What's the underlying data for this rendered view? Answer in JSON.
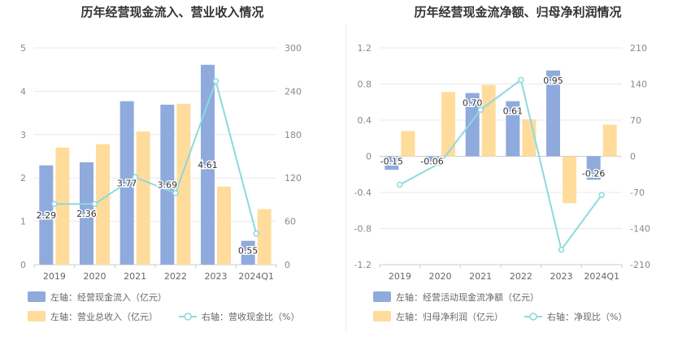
{
  "chart_data": [
    {
      "type": "bar",
      "title": "历年经营现金流入、营业收入情况",
      "categories": [
        "2019",
        "2020",
        "2021",
        "2022",
        "2023",
        "2024Q1"
      ],
      "y_left": {
        "range": [
          0,
          5
        ],
        "ticks": [
          "0",
          "1",
          "2",
          "3",
          "4",
          "5"
        ]
      },
      "y_right": {
        "range": [
          0,
          300
        ],
        "ticks": [
          "0",
          "60",
          "120",
          "180",
          "240",
          "300"
        ]
      },
      "series": [
        {
          "name": "左轴：经营现金流入（亿元）",
          "kind": "bar",
          "axis": "left",
          "color": "#8faadc",
          "values": [
            2.29,
            2.36,
            3.77,
            3.69,
            4.61,
            0.55
          ],
          "labels": [
            "2.29",
            "2.36",
            "3.77",
            "3.69",
            "4.61",
            "0.55"
          ]
        },
        {
          "name": "左轴：营业总收入（亿元）",
          "kind": "bar",
          "axis": "left",
          "color": "#ffdc9c",
          "values": [
            2.7,
            2.78,
            3.07,
            3.71,
            1.8,
            1.28
          ]
        },
        {
          "name": "右轴：营收现金比（%）",
          "kind": "line",
          "axis": "right",
          "color": "#8dd9dc",
          "values": [
            84,
            84,
            121,
            99,
            254,
            43
          ]
        }
      ],
      "legend": [
        {
          "label": "左轴：经营现金流入（亿元）",
          "kind": "bar",
          "color": "#8faadc"
        },
        {
          "label": "左轴：营业总收入（亿元）",
          "kind": "bar",
          "color": "#ffdc9c"
        },
        {
          "label": "右轴：营收现金比（%）",
          "kind": "line",
          "color": "#8dd9dc"
        }
      ]
    },
    {
      "type": "bar",
      "title": "历年经营现金流净额、归母净利润情况",
      "categories": [
        "2019",
        "2020",
        "2021",
        "2022",
        "2023",
        "2024Q1"
      ],
      "y_left": {
        "range": [
          -1.2,
          1.2
        ],
        "ticks": [
          "-1.2",
          "-0.8",
          "-0.4",
          "0",
          "0.4",
          "0.8",
          "1.2"
        ]
      },
      "y_right": {
        "range": [
          -210,
          210
        ],
        "ticks": [
          "-210",
          "-140",
          "-70",
          "0",
          "70",
          "140",
          "210"
        ]
      },
      "series": [
        {
          "name": "左轴：经营活动现金流净额（亿元）",
          "kind": "bar",
          "axis": "left",
          "color": "#8faadc",
          "values": [
            -0.15,
            -0.06,
            0.7,
            0.61,
            0.95,
            -0.26
          ],
          "labels": [
            "-0.15",
            "-0.06",
            "0.70",
            "0.61",
            "0.95",
            "-0.26"
          ]
        },
        {
          "name": "左轴：归母净利润（亿元）",
          "kind": "bar",
          "axis": "left",
          "color": "#ffdc9c",
          "values": [
            0.28,
            0.71,
            0.79,
            0.41,
            -0.52,
            0.35
          ]
        },
        {
          "name": "右轴：净现比（%）",
          "kind": "line",
          "axis": "right",
          "color": "#8dd9dc",
          "values": [
            -55,
            -13,
            90,
            148,
            -181,
            -75
          ]
        }
      ],
      "legend": [
        {
          "label": "左轴：经营活动现金流净额（亿元）",
          "kind": "bar",
          "color": "#8faadc"
        },
        {
          "label": "左轴：归母净利润（亿元）",
          "kind": "bar",
          "color": "#ffdc9c"
        },
        {
          "label": "右轴：净现比（%）",
          "kind": "line",
          "color": "#8dd9dc"
        }
      ]
    }
  ]
}
